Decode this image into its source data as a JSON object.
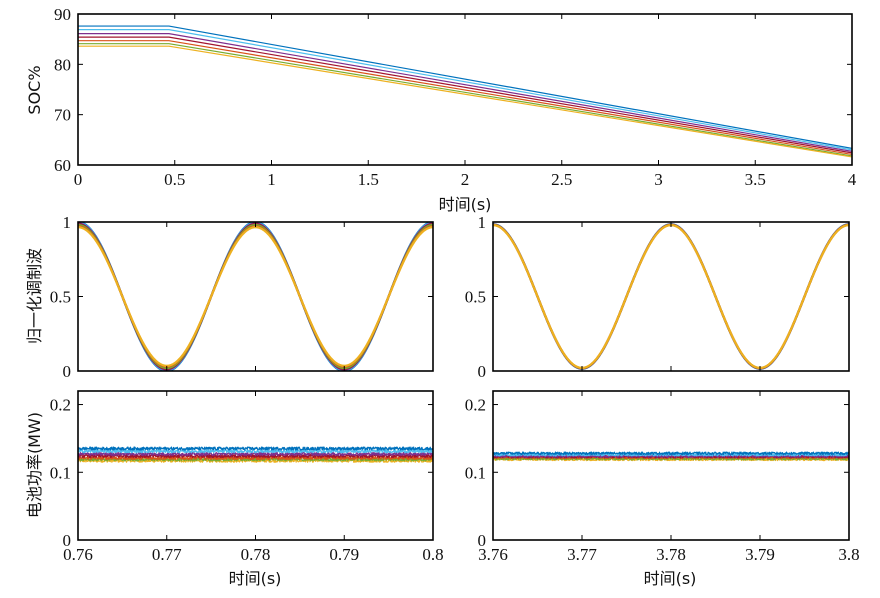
{
  "chart_data": [
    {
      "type": "line",
      "ylabel": "SOC%",
      "xlabel": "时间(s)",
      "xlim": [
        0,
        4
      ],
      "ylim": [
        60,
        90
      ],
      "xticks": [
        "0",
        "0.5",
        "1",
        "1.5",
        "2",
        "2.5",
        "3",
        "3.5",
        "4"
      ],
      "yticks": [
        "60",
        "70",
        "80",
        "90"
      ],
      "series": [
        {
          "color": "#0072BD",
          "x": [
            0,
            0.47,
            4
          ],
          "values": [
            87.6,
            87.6,
            63.3
          ]
        },
        {
          "color": "#4DBEEE",
          "x": [
            0,
            0.47,
            4
          ],
          "values": [
            86.9,
            86.9,
            63.0
          ]
        },
        {
          "color": "#7E2F8E",
          "x": [
            0,
            0.47,
            4
          ],
          "values": [
            86.1,
            86.1,
            62.7
          ]
        },
        {
          "color": "#A2142F",
          "x": [
            0,
            0.47,
            4
          ],
          "values": [
            85.4,
            85.4,
            62.4
          ]
        },
        {
          "color": "#D95319",
          "x": [
            0,
            0.47,
            4
          ],
          "values": [
            84.7,
            84.7,
            62.1
          ]
        },
        {
          "color": "#77AC30",
          "x": [
            0,
            0.47,
            4
          ],
          "values": [
            84.1,
            84.1,
            61.8
          ]
        },
        {
          "color": "#EDB120",
          "x": [
            0,
            0.47,
            4
          ],
          "values": [
            83.6,
            83.6,
            61.6
          ]
        }
      ]
    },
    {
      "type": "line",
      "ylabel": "归一化调制波",
      "xlim": [
        0.76,
        0.8
      ],
      "ylim": [
        0,
        1
      ],
      "yticks": [
        "0",
        "0.5",
        "1"
      ],
      "wave": {
        "frequency_hz": 50,
        "phase_deg": 90,
        "min": 0,
        "max": 1
      },
      "series": [
        {
          "color": "#0072BD",
          "amplitude": 1.0
        },
        {
          "color": "#4DBEEE",
          "amplitude": 0.99
        },
        {
          "color": "#7E2F8E",
          "amplitude": 0.98
        },
        {
          "color": "#A2142F",
          "amplitude": 0.97
        },
        {
          "color": "#77AC30",
          "amplitude": 0.96
        },
        {
          "color": "#D95319",
          "amplitude": 0.94
        },
        {
          "color": "#EDB120",
          "amplitude": 0.93
        }
      ]
    },
    {
      "type": "line",
      "xlim": [
        3.76,
        3.8
      ],
      "ylim": [
        0,
        1
      ],
      "yticks": [
        "0",
        "0.5",
        "1"
      ],
      "wave": {
        "frequency_hz": 50,
        "phase_deg": 90,
        "min": 0,
        "max": 1
      },
      "series": [
        {
          "color": "#0072BD",
          "amplitude": 0.97
        },
        {
          "color": "#4DBEEE",
          "amplitude": 0.968
        },
        {
          "color": "#7E2F8E",
          "amplitude": 0.966
        },
        {
          "color": "#A2142F",
          "amplitude": 0.964
        },
        {
          "color": "#77AC30",
          "amplitude": 0.962
        },
        {
          "color": "#D95319",
          "amplitude": 0.96
        },
        {
          "color": "#EDB120",
          "amplitude": 0.958
        }
      ]
    },
    {
      "type": "line",
      "ylabel": "电池功率(MW)",
      "xlabel": "时间(s)",
      "xlim": [
        0.76,
        0.8
      ],
      "ylim": [
        0,
        0.22
      ],
      "xticks": [
        "0.76",
        "0.77",
        "0.78",
        "0.79",
        "0.8"
      ],
      "yticks": [
        "0",
        "0.1",
        "0.2"
      ],
      "series": [
        {
          "color": "#EDB120",
          "mean": 0.117,
          "noise": 0.0022
        },
        {
          "color": "#77AC30",
          "mean": 0.119,
          "noise": 0.0022
        },
        {
          "color": "#D95319",
          "mean": 0.121,
          "noise": 0.0022
        },
        {
          "color": "#A2142F",
          "mean": 0.124,
          "noise": 0.0022
        },
        {
          "color": "#7E2F8E",
          "mean": 0.127,
          "noise": 0.0022
        },
        {
          "color": "#4DBEEE",
          "mean": 0.131,
          "noise": 0.0022
        },
        {
          "color": "#0072BD",
          "mean": 0.135,
          "noise": 0.0022
        }
      ]
    },
    {
      "type": "line",
      "xlabel": "时间(s)",
      "xlim": [
        3.76,
        3.8
      ],
      "ylim": [
        0,
        0.22
      ],
      "xticks": [
        "3.76",
        "3.77",
        "3.78",
        "3.79",
        "3.8"
      ],
      "yticks": [
        "0",
        "0.1",
        "0.2"
      ],
      "series": [
        {
          "color": "#EDB120",
          "mean": 0.119,
          "noise": 0.0018
        },
        {
          "color": "#77AC30",
          "mean": 0.12,
          "noise": 0.0018
        },
        {
          "color": "#D95319",
          "mean": 0.122,
          "noise": 0.0018
        },
        {
          "color": "#A2142F",
          "mean": 0.123,
          "noise": 0.0018
        },
        {
          "color": "#7E2F8E",
          "mean": 0.124,
          "noise": 0.0018
        },
        {
          "color": "#4DBEEE",
          "mean": 0.126,
          "noise": 0.0018
        },
        {
          "color": "#0072BD",
          "mean": 0.128,
          "noise": 0.0018
        }
      ]
    }
  ]
}
